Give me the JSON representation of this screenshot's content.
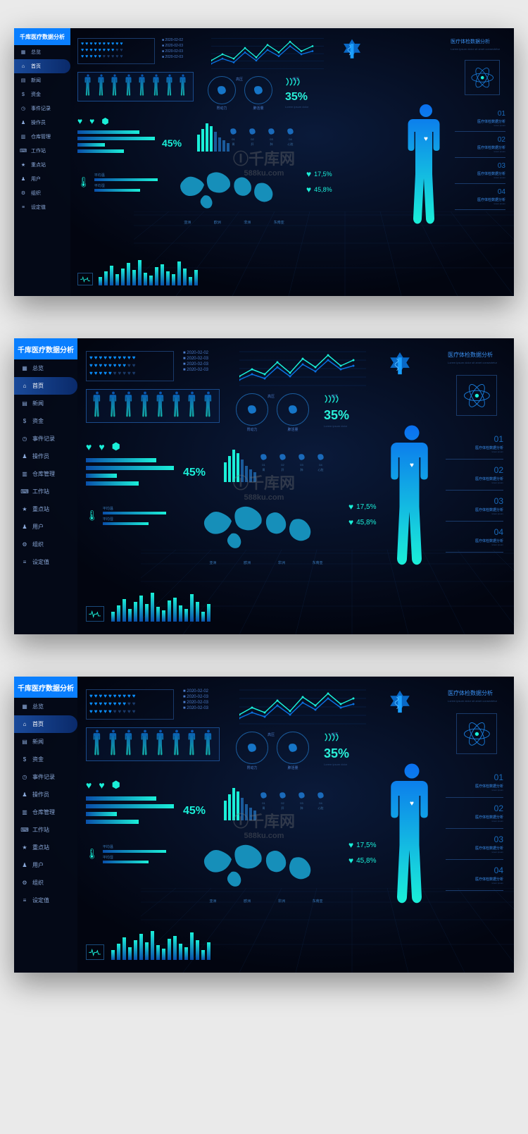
{
  "sidebar": {
    "title": "千库医疗数据分析",
    "items": [
      {
        "icon": "grid",
        "label": "总览"
      },
      {
        "icon": "home",
        "label": "首页",
        "active": true
      },
      {
        "icon": "news",
        "label": "新闻"
      },
      {
        "icon": "money",
        "label": "资金"
      },
      {
        "icon": "event",
        "label": "事件记录"
      },
      {
        "icon": "user",
        "label": "操作员"
      },
      {
        "icon": "warehouse",
        "label": "仓库管理"
      },
      {
        "icon": "workstation",
        "label": "工作站"
      },
      {
        "icon": "star",
        "label": "重点站"
      },
      {
        "icon": "users",
        "label": "用户"
      },
      {
        "icon": "org",
        "label": "组织"
      },
      {
        "icon": "settings",
        "label": "设定值"
      }
    ]
  },
  "hearts": {
    "rows": 3,
    "cols": 10,
    "filled": [
      10,
      8,
      5
    ],
    "color_on": "#0a8fff",
    "color_off": "#1a3a6a"
  },
  "dates": [
    "2020-02-02",
    "2020-02-03",
    "2020-02-03",
    "2020-02-03"
  ],
  "line_chart": {
    "type": "line",
    "series": [
      {
        "color": "#1aefd8",
        "points": [
          15,
          25,
          18,
          35,
          20,
          40,
          28,
          45,
          30,
          38
        ]
      },
      {
        "color": "#0a6fdf",
        "points": [
          10,
          18,
          12,
          28,
          15,
          32,
          22,
          38,
          25,
          30
        ]
      }
    ],
    "labels": [
      "高压",
      "低压"
    ],
    "grid_color": "#0a2a5a"
  },
  "analysis": {
    "title": "医疗体检数据分析",
    "subtitle": "Lorem ipsum dolor sit amet consectetur"
  },
  "organ_circles": [
    {
      "label": "胃动力",
      "icon": "stomach"
    },
    {
      "label": "肺活量",
      "icon": "liver"
    }
  ],
  "dna": {
    "pct": "35%",
    "sub": "Lorem ipsum dolor"
  },
  "organ_icons_top": [
    "♥",
    "♥",
    "⬢"
  ],
  "hbars": [
    80,
    100,
    35,
    60
  ],
  "pct45": "45%",
  "vbars": {
    "count": 8,
    "heights": [
      60,
      80,
      100,
      90,
      70,
      50,
      40,
      30
    ],
    "active": 4
  },
  "organ_small": [
    {
      "icon": "stomach",
      "num": "01",
      "label": "胃"
    },
    {
      "icon": "liver",
      "num": "02",
      "label": "肝"
    },
    {
      "icon": "lung",
      "num": "03",
      "label": "肺"
    },
    {
      "icon": "heart",
      "num": "04",
      "label": "心脏"
    }
  ],
  "num_list": [
    {
      "num": "01",
      "label": "医疗体检数据分析",
      "sub": "lorem ipsum"
    },
    {
      "num": "02",
      "label": "医疗体检数据分析",
      "sub": "lorem ipsum"
    },
    {
      "num": "03",
      "label": "医疗体检数据分析",
      "sub": "lorem ipsum"
    },
    {
      "num": "04",
      "label": "医疗体检数据分析",
      "sub": "lorem ipsum"
    }
  ],
  "thermo": {
    "bars": [
      {
        "label": "平均温",
        "width": 90
      },
      {
        "label": "平均湿",
        "width": 65
      }
    ]
  },
  "map_labels": [
    "亚洲",
    "欧洲",
    "非洲",
    "东南亚"
  ],
  "heart_stats": [
    {
      "icon": "♥",
      "val": "17,5%"
    },
    {
      "icon": "♥",
      "val": "45,8%"
    }
  ],
  "bottom_bars": [
    30,
    50,
    70,
    40,
    60,
    80,
    55,
    90,
    45,
    35,
    65,
    75,
    50,
    40,
    85,
    60,
    30,
    55
  ],
  "colors": {
    "bg_dark": "#020510",
    "bg_glow": "#0a1a3a",
    "accent_blue": "#0a7fff",
    "accent_cyan": "#1aefd8",
    "text_dim": "#4a7ac8",
    "border": "#1a3a6a"
  },
  "watermark": {
    "main": "Ⓘ千库网",
    "sub": "588ku.com"
  },
  "body_gradient": {
    "from": "#0a6fef",
    "to": "#1aefd8"
  }
}
